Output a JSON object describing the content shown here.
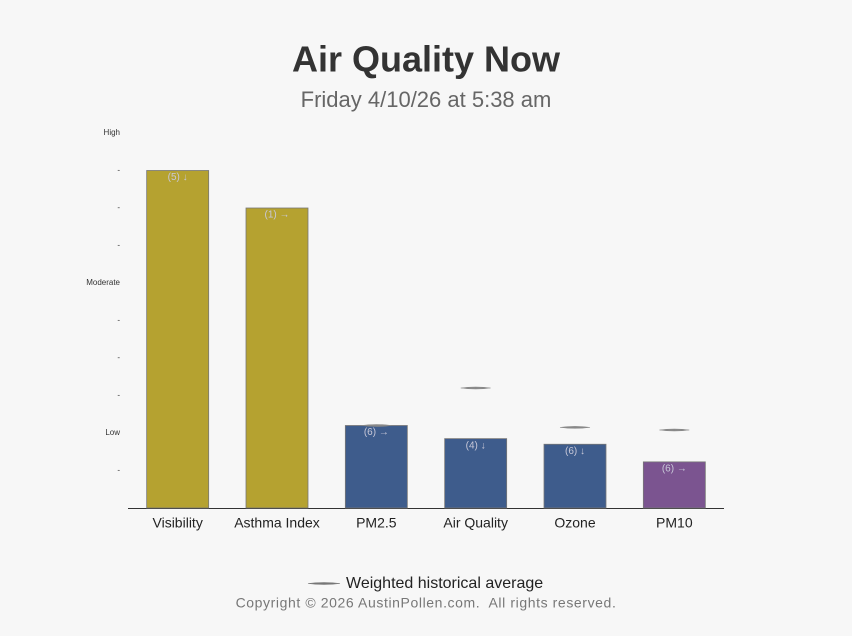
{
  "chart_data": {
    "type": "bar",
    "title": "Air Quality Now",
    "subtitle": "Friday 4/10/26 at 5:38 am",
    "categories": [
      "Visibility",
      "Asthma Index",
      "PM2.5",
      "Air Quality",
      "Ozone",
      "PM10"
    ],
    "values": [
      9.0,
      8.0,
      2.2,
      1.85,
      1.7,
      1.23
    ],
    "colors": [
      "#b5a230",
      "#b5a230",
      "#3e5c8c",
      "#3e5c8c",
      "#3e5c8c",
      "#7b5490"
    ],
    "annotations": [
      "(5) ↓",
      "(1) →",
      "(6) →",
      "(4) ↓",
      "(6) ↓",
      "(6) →"
    ],
    "average": {
      "name": "Weighted historical average",
      "color": "#888888",
      "values": [
        null,
        null,
        2.2,
        3.2,
        2.15,
        2.08
      ]
    },
    "ylim": [
      0,
      10
    ],
    "yticks": [
      {
        "value": 1,
        "label": "-"
      },
      {
        "value": 2,
        "label": "Low"
      },
      {
        "value": 3,
        "label": "-"
      },
      {
        "value": 4,
        "label": "-"
      },
      {
        "value": 5,
        "label": "-"
      },
      {
        "value": 6,
        "label": "Moderate"
      },
      {
        "value": 7,
        "label": "-"
      },
      {
        "value": 8,
        "label": "-"
      },
      {
        "value": 9,
        "label": "-"
      },
      {
        "value": 10,
        "label": "High"
      }
    ],
    "footer": "Copyright © 2026 AustinPollen.com.  All rights reserved."
  }
}
